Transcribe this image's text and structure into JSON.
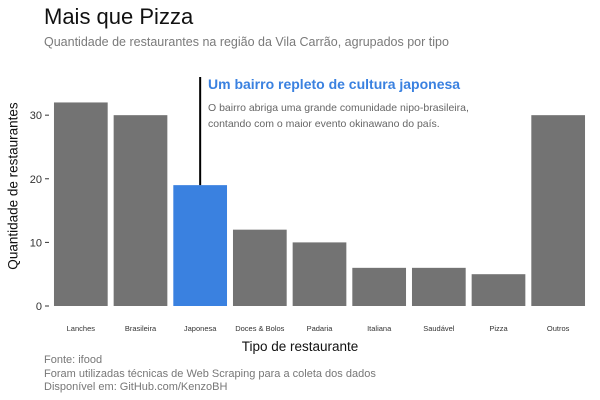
{
  "title": "Mais que Pizza",
  "subtitle": "Quantidade de restaurantes na região da Vila Carrão, agrupados por tipo",
  "annotation": {
    "title": "Um bairro repleto de cultura japonesa",
    "line1": "O bairro abriga uma grande comunidade nipo-brasileira,",
    "line2": "contando com o maior evento okinawano do país."
  },
  "caption": {
    "line1": "Fonte: ifood",
    "line2": "Foram utilizadas técnicas de Web Scraping para a coleta dos dados",
    "line3": "Disponível em: GitHub.com/KenzoBH"
  },
  "colors": {
    "bar": "#737373",
    "highlight": "#3a81e0",
    "annotation_line": "#000000"
  },
  "chart_data": {
    "type": "bar",
    "title": "Mais que Pizza",
    "subtitle": "Quantidade de restaurantes na região da Vila Carrão, agrupados por tipo",
    "xlabel": "Tipo de restaurante",
    "ylabel": "Quantidade de restaurantes",
    "categories": [
      "Lanches",
      "Brasileira",
      "Japonesa",
      "Doces & Bolos",
      "Padaria",
      "Italiana",
      "Saudável",
      "Pizza",
      "Outros"
    ],
    "values": [
      32,
      30,
      19,
      12,
      10,
      6,
      6,
      5,
      30
    ],
    "highlight": "Japonesa",
    "ylim": [
      0,
      36
    ],
    "yticks": [
      0,
      10,
      20,
      30
    ],
    "grid": false,
    "legend": "none"
  }
}
